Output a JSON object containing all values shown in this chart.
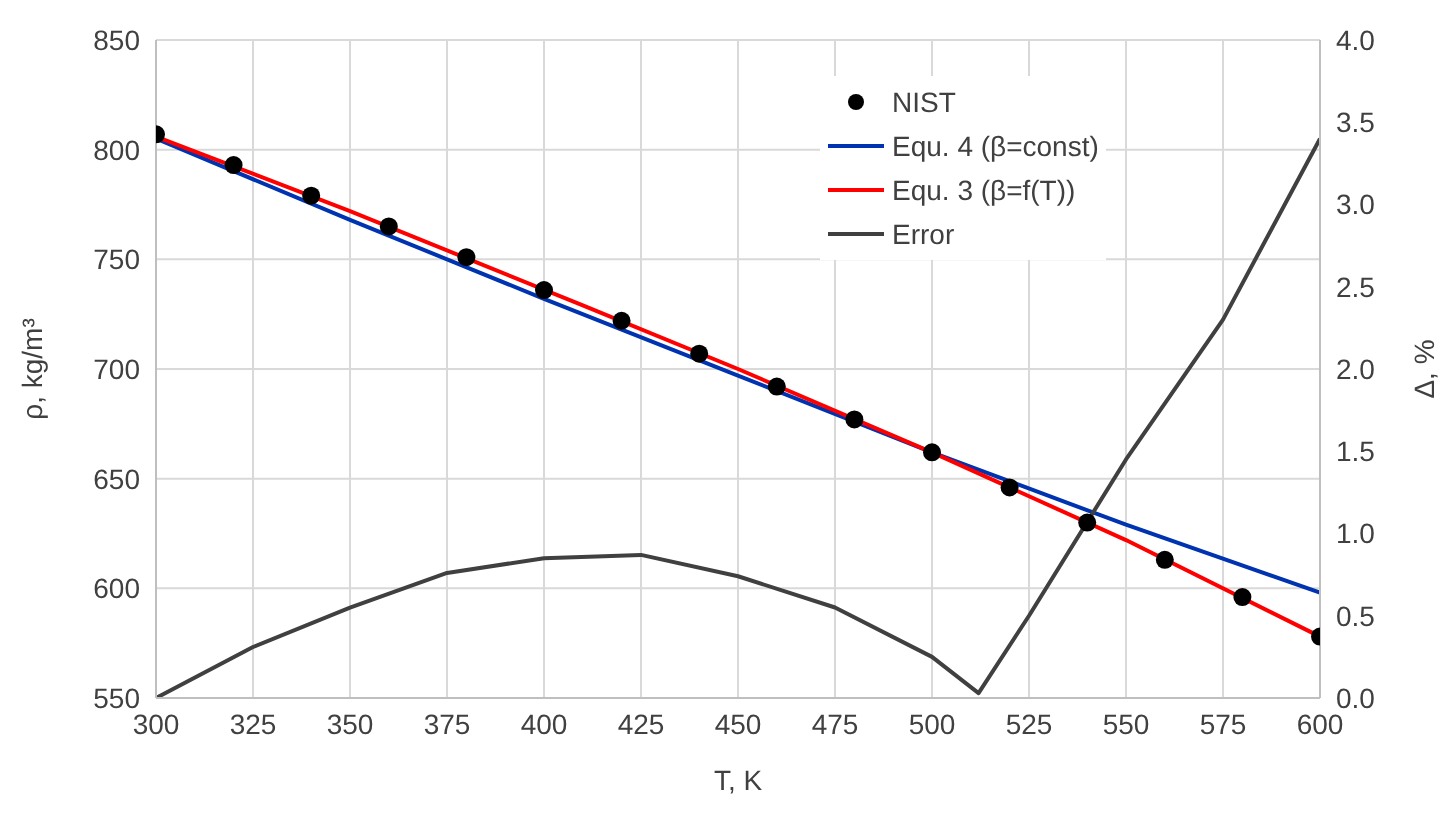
{
  "chart_data": {
    "type": "line",
    "xlabel": "T, K",
    "ylabel": "ρ, kg/m³",
    "y2label": "Δ, %",
    "xlim": [
      300,
      600
    ],
    "xticks": [
      300,
      325,
      350,
      375,
      400,
      425,
      450,
      475,
      500,
      525,
      550,
      575,
      600
    ],
    "ylim": [
      550,
      850
    ],
    "yticks": [
      550,
      600,
      650,
      700,
      750,
      800,
      850
    ],
    "y2lim": [
      0,
      4
    ],
    "y2ticks": [
      {
        "value": 0,
        "label": "0.0"
      },
      {
        "value": 0.5,
        "label": "0.5"
      },
      {
        "value": 1,
        "label": "1.0"
      },
      {
        "value": 1.5,
        "label": "1.5"
      },
      {
        "value": 2,
        "label": "2.0"
      },
      {
        "value": 2.5,
        "label": "2.5"
      },
      {
        "value": 3,
        "label": "3.0"
      },
      {
        "value": 3.5,
        "label": "3.5"
      },
      {
        "value": 4,
        "label": "4.0"
      }
    ],
    "grid": true,
    "legend": "top right",
    "series": [
      {
        "name": "NIST",
        "type": "scatter",
        "marker": "circle",
        "color": "#000000",
        "x": [
          300,
          320,
          340,
          360,
          380,
          400,
          420,
          440,
          460,
          480,
          500,
          520,
          540,
          560,
          580,
          600
        ],
        "values": [
          807,
          793,
          779,
          765,
          751,
          736,
          722,
          707,
          692,
          677,
          662,
          646,
          630,
          613,
          596,
          578
        ]
      },
      {
        "name": "Equ. 4 (β=const)",
        "color": "#0033b0",
        "x": [
          300,
          350,
          400,
          450,
          500,
          550,
          600
        ],
        "values": [
          805,
          768,
          732,
          697,
          662,
          629,
          598
        ]
      },
      {
        "name": "Equ. 3 (β=f(T))",
        "color": "#ff0000",
        "x": [
          300,
          350,
          410,
          450,
          500,
          550,
          600
        ],
        "values": [
          806,
          772,
          729,
          700,
          662,
          622,
          578
        ]
      },
      {
        "name": "Error",
        "color": "#404040",
        "axis": "y2",
        "x": [
          300,
          325,
          350,
          375,
          400,
          425,
          450,
          475,
          500,
          512,
          525,
          550,
          575,
          600
        ],
        "values": [
          0,
          0.31,
          0.55,
          0.76,
          0.85,
          0.87,
          0.74,
          0.55,
          0.25,
          0.03,
          0.5,
          1.45,
          2.3,
          3.4
        ]
      }
    ]
  }
}
